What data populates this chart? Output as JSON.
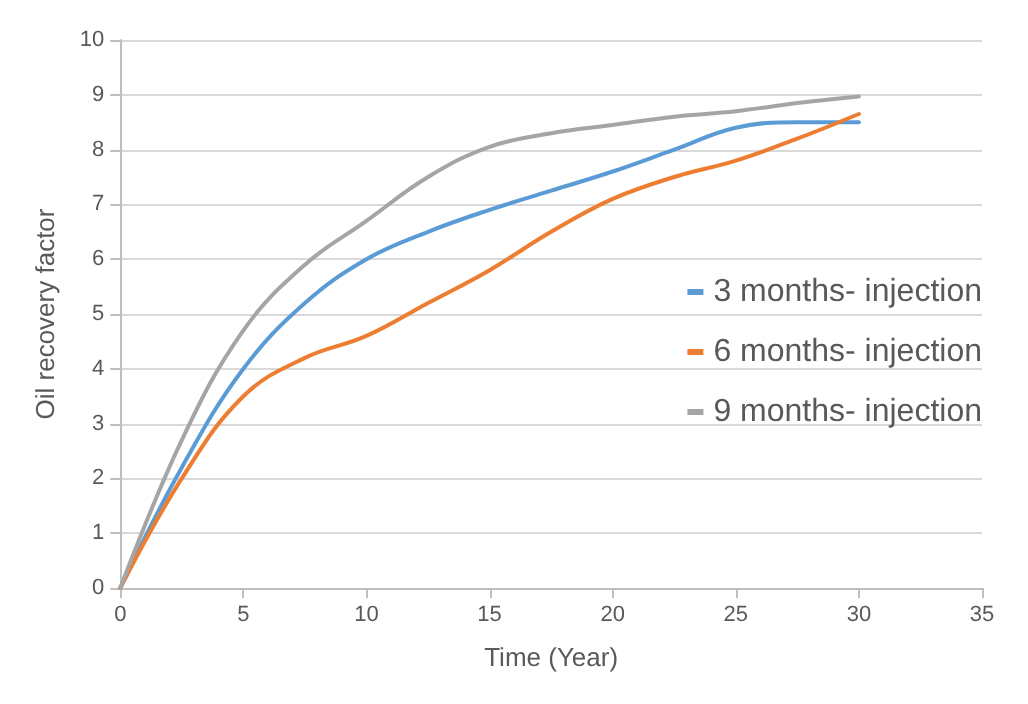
{
  "chart_data": {
    "type": "line",
    "xlabel": "Time (Year)",
    "ylabel": "Oil recovery factor",
    "x": [
      0,
      2.5,
      5,
      7.5,
      10,
      12.5,
      15,
      17.5,
      20,
      22.5,
      25,
      27.5,
      30
    ],
    "series": [
      {
        "name": "3 months- injection",
        "color": "#5b9bd5",
        "values": [
          0,
          2.2,
          4.0,
          5.2,
          6.0,
          6.5,
          6.9,
          7.25,
          7.6,
          8.0,
          8.4,
          8.5,
          8.5
        ]
      },
      {
        "name": "6 months- injection",
        "color": "#ed7d31",
        "values": [
          0,
          2.0,
          3.5,
          4.2,
          4.6,
          5.2,
          5.8,
          6.5,
          7.1,
          7.5,
          7.8,
          8.2,
          8.65
        ]
      },
      {
        "name": "9 months- injection",
        "color": "#a5a5a5",
        "values": [
          0,
          2.7,
          4.7,
          5.9,
          6.7,
          7.5,
          8.05,
          8.3,
          8.45,
          8.6,
          8.7,
          8.85,
          8.97
        ]
      }
    ],
    "xlim": [
      0,
      35
    ],
    "xticks": [
      0,
      5,
      10,
      15,
      20,
      25,
      30,
      35
    ],
    "ylim": [
      0,
      10
    ],
    "yticks": [
      0,
      1,
      2,
      3,
      4,
      5,
      6,
      7,
      8,
      9,
      10
    ],
    "grid": "y",
    "legend": "right",
    "marker": "none",
    "line_style": "solid"
  }
}
